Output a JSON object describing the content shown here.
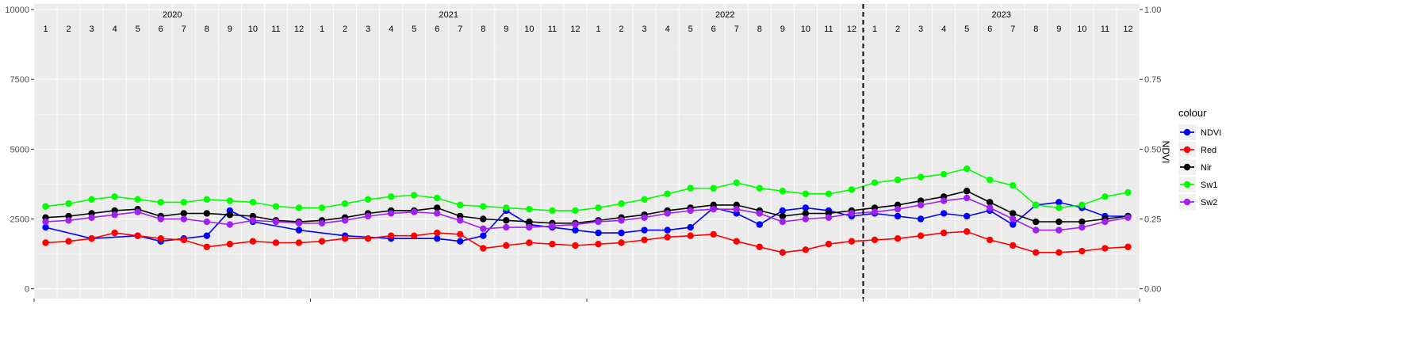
{
  "chart_data": {
    "type": "line",
    "title": "",
    "xlabel": "",
    "ylabel": "",
    "y2label": "NDVI",
    "ylim": [
      -350,
      10200
    ],
    "y2lim": [
      -0.035,
      1.02
    ],
    "y_ticks": [
      0,
      2500,
      5000,
      7500,
      10000
    ],
    "y_tick_labels": [
      "0",
      "2500",
      "5000",
      "7500",
      "10000"
    ],
    "y2_ticks": [
      0,
      0.25,
      0.5,
      0.75,
      1
    ],
    "y2_tick_labels": [
      "0.00",
      "0.25",
      "0.50",
      "0.75",
      "1.00"
    ],
    "x_axis_unit": "month",
    "x_range_months": [
      -0.5,
      47.5
    ],
    "year_labels": [
      "2020",
      "2021",
      "2022",
      "2023"
    ],
    "month_labels": [
      "1",
      "2",
      "3",
      "4",
      "5",
      "6",
      "7",
      "8",
      "9",
      "10",
      "11",
      "12"
    ],
    "vline_x_month": 36,
    "vline_style": "dashed",
    "grid": true,
    "legend": {
      "title": "colour",
      "position": "right"
    },
    "series": [
      {
        "name": "NDVI",
        "color": "#0000ff",
        "axis": "right",
        "points": [
          [
            0,
            0.22
          ],
          [
            2,
            0.18
          ],
          [
            4,
            0.19
          ],
          [
            5,
            0.17
          ],
          [
            6,
            0.18
          ],
          [
            7,
            0.19
          ],
          [
            8,
            0.28
          ],
          [
            9,
            0.24
          ],
          [
            11,
            0.21
          ],
          [
            13,
            0.19
          ],
          [
            15,
            0.18
          ],
          [
            17,
            0.18
          ],
          [
            18,
            0.17
          ],
          [
            19,
            0.19
          ],
          [
            20,
            0.28
          ],
          [
            21,
            0.23
          ],
          [
            22,
            0.22
          ],
          [
            23,
            0.21
          ],
          [
            24,
            0.2
          ],
          [
            25,
            0.2
          ],
          [
            26,
            0.21
          ],
          [
            27,
            0.21
          ],
          [
            28,
            0.22
          ],
          [
            29,
            0.29
          ],
          [
            30,
            0.27
          ],
          [
            31,
            0.23
          ],
          [
            32,
            0.28
          ],
          [
            33,
            0.29
          ],
          [
            34,
            0.28
          ],
          [
            35,
            0.26
          ],
          [
            36,
            0.27
          ],
          [
            37,
            0.26
          ],
          [
            38,
            0.25
          ],
          [
            39,
            0.27
          ],
          [
            40,
            0.26
          ],
          [
            41,
            0.28
          ],
          [
            42,
            0.23
          ],
          [
            43,
            0.3
          ],
          [
            44,
            0.31
          ],
          [
            45,
            0.29
          ],
          [
            46,
            0.26
          ],
          [
            47,
            0.26
          ]
        ]
      },
      {
        "name": "Red",
        "color": "#ff0000",
        "axis": "left",
        "points": [
          [
            0,
            1650
          ],
          [
            1,
            1700
          ],
          [
            2,
            1800
          ],
          [
            3,
            2000
          ],
          [
            4,
            1900
          ],
          [
            5,
            1800
          ],
          [
            6,
            1750
          ],
          [
            7,
            1500
          ],
          [
            8,
            1600
          ],
          [
            9,
            1700
          ],
          [
            10,
            1650
          ],
          [
            11,
            1650
          ],
          [
            12,
            1700
          ],
          [
            13,
            1800
          ],
          [
            14,
            1800
          ],
          [
            15,
            1900
          ],
          [
            16,
            1900
          ],
          [
            17,
            2000
          ],
          [
            18,
            1950
          ],
          [
            19,
            1450
          ],
          [
            20,
            1550
          ],
          [
            21,
            1650
          ],
          [
            22,
            1600
          ],
          [
            23,
            1550
          ],
          [
            24,
            1600
          ],
          [
            25,
            1650
          ],
          [
            26,
            1750
          ],
          [
            27,
            1850
          ],
          [
            28,
            1900
          ],
          [
            29,
            1950
          ],
          [
            30,
            1700
          ],
          [
            31,
            1500
          ],
          [
            32,
            1300
          ],
          [
            33,
            1400
          ],
          [
            34,
            1600
          ],
          [
            35,
            1700
          ],
          [
            36,
            1750
          ],
          [
            37,
            1800
          ],
          [
            38,
            1900
          ],
          [
            39,
            2000
          ],
          [
            40,
            2050
          ],
          [
            41,
            1750
          ],
          [
            42,
            1550
          ],
          [
            43,
            1300
          ],
          [
            44,
            1300
          ],
          [
            45,
            1350
          ],
          [
            46,
            1450
          ],
          [
            47,
            1500
          ]
        ]
      },
      {
        "name": "Nir",
        "color": "#000000",
        "axis": "left",
        "points": [
          [
            0,
            2550
          ],
          [
            1,
            2600
          ],
          [
            2,
            2700
          ],
          [
            3,
            2800
          ],
          [
            4,
            2850
          ],
          [
            5,
            2600
          ],
          [
            6,
            2700
          ],
          [
            7,
            2700
          ],
          [
            8,
            2650
          ],
          [
            9,
            2600
          ],
          [
            10,
            2450
          ],
          [
            11,
            2400
          ],
          [
            12,
            2450
          ],
          [
            13,
            2550
          ],
          [
            14,
            2700
          ],
          [
            15,
            2800
          ],
          [
            16,
            2800
          ],
          [
            17,
            2900
          ],
          [
            18,
            2600
          ],
          [
            19,
            2500
          ],
          [
            20,
            2450
          ],
          [
            21,
            2400
          ],
          [
            22,
            2350
          ],
          [
            23,
            2350
          ],
          [
            24,
            2450
          ],
          [
            25,
            2550
          ],
          [
            26,
            2650
          ],
          [
            27,
            2800
          ],
          [
            28,
            2900
          ],
          [
            29,
            3000
          ],
          [
            30,
            3000
          ],
          [
            31,
            2800
          ],
          [
            32,
            2600
          ],
          [
            33,
            2700
          ],
          [
            34,
            2700
          ],
          [
            35,
            2800
          ],
          [
            36,
            2900
          ],
          [
            37,
            3000
          ],
          [
            38,
            3150
          ],
          [
            39,
            3300
          ],
          [
            40,
            3500
          ],
          [
            41,
            3100
          ],
          [
            42,
            2700
          ],
          [
            43,
            2400
          ],
          [
            44,
            2400
          ],
          [
            45,
            2400
          ],
          [
            46,
            2500
          ],
          [
            47,
            2600
          ]
        ]
      },
      {
        "name": "Sw1",
        "color": "#00ff00",
        "axis": "left",
        "points": [
          [
            0,
            2950
          ],
          [
            1,
            3050
          ],
          [
            2,
            3200
          ],
          [
            3,
            3300
          ],
          [
            4,
            3200
          ],
          [
            5,
            3100
          ],
          [
            6,
            3100
          ],
          [
            7,
            3200
          ],
          [
            8,
            3150
          ],
          [
            9,
            3100
          ],
          [
            10,
            2950
          ],
          [
            11,
            2900
          ],
          [
            12,
            2900
          ],
          [
            13,
            3050
          ],
          [
            14,
            3200
          ],
          [
            15,
            3300
          ],
          [
            16,
            3350
          ],
          [
            17,
            3250
          ],
          [
            18,
            3000
          ],
          [
            19,
            2950
          ],
          [
            20,
            2900
          ],
          [
            21,
            2850
          ],
          [
            22,
            2800
          ],
          [
            23,
            2800
          ],
          [
            24,
            2900
          ],
          [
            25,
            3050
          ],
          [
            26,
            3200
          ],
          [
            27,
            3400
          ],
          [
            28,
            3600
          ],
          [
            29,
            3600
          ],
          [
            30,
            3800
          ],
          [
            31,
            3600
          ],
          [
            32,
            3500
          ],
          [
            33,
            3400
          ],
          [
            34,
            3400
          ],
          [
            35,
            3550
          ],
          [
            36,
            3800
          ],
          [
            37,
            3900
          ],
          [
            38,
            4000
          ],
          [
            39,
            4100
          ],
          [
            40,
            4300
          ],
          [
            41,
            3900
          ],
          [
            42,
            3700
          ],
          [
            43,
            3000
          ],
          [
            44,
            2900
          ],
          [
            45,
            3000
          ],
          [
            46,
            3300
          ],
          [
            47,
            3450
          ]
        ]
      },
      {
        "name": "Sw2",
        "color": "#a020f0",
        "axis": "left",
        "points": [
          [
            0,
            2400
          ],
          [
            1,
            2450
          ],
          [
            2,
            2550
          ],
          [
            3,
            2650
          ],
          [
            4,
            2750
          ],
          [
            5,
            2500
          ],
          [
            6,
            2500
          ],
          [
            7,
            2400
          ],
          [
            8,
            2300
          ],
          [
            9,
            2450
          ],
          [
            10,
            2400
          ],
          [
            11,
            2350
          ],
          [
            12,
            2350
          ],
          [
            13,
            2450
          ],
          [
            14,
            2600
          ],
          [
            15,
            2700
          ],
          [
            16,
            2750
          ],
          [
            17,
            2700
          ],
          [
            18,
            2450
          ],
          [
            19,
            2150
          ],
          [
            20,
            2200
          ],
          [
            21,
            2200
          ],
          [
            22,
            2250
          ],
          [
            23,
            2300
          ],
          [
            24,
            2400
          ],
          [
            25,
            2450
          ],
          [
            26,
            2550
          ],
          [
            27,
            2700
          ],
          [
            28,
            2800
          ],
          [
            29,
            2850
          ],
          [
            30,
            2850
          ],
          [
            31,
            2700
          ],
          [
            32,
            2400
          ],
          [
            33,
            2500
          ],
          [
            34,
            2550
          ],
          [
            35,
            2700
          ],
          [
            36,
            2750
          ],
          [
            37,
            2850
          ],
          [
            38,
            3000
          ],
          [
            39,
            3150
          ],
          [
            40,
            3250
          ],
          [
            41,
            2900
          ],
          [
            42,
            2500
          ],
          [
            43,
            2100
          ],
          [
            44,
            2100
          ],
          [
            45,
            2200
          ],
          [
            46,
            2400
          ],
          [
            47,
            2550
          ]
        ]
      }
    ]
  }
}
